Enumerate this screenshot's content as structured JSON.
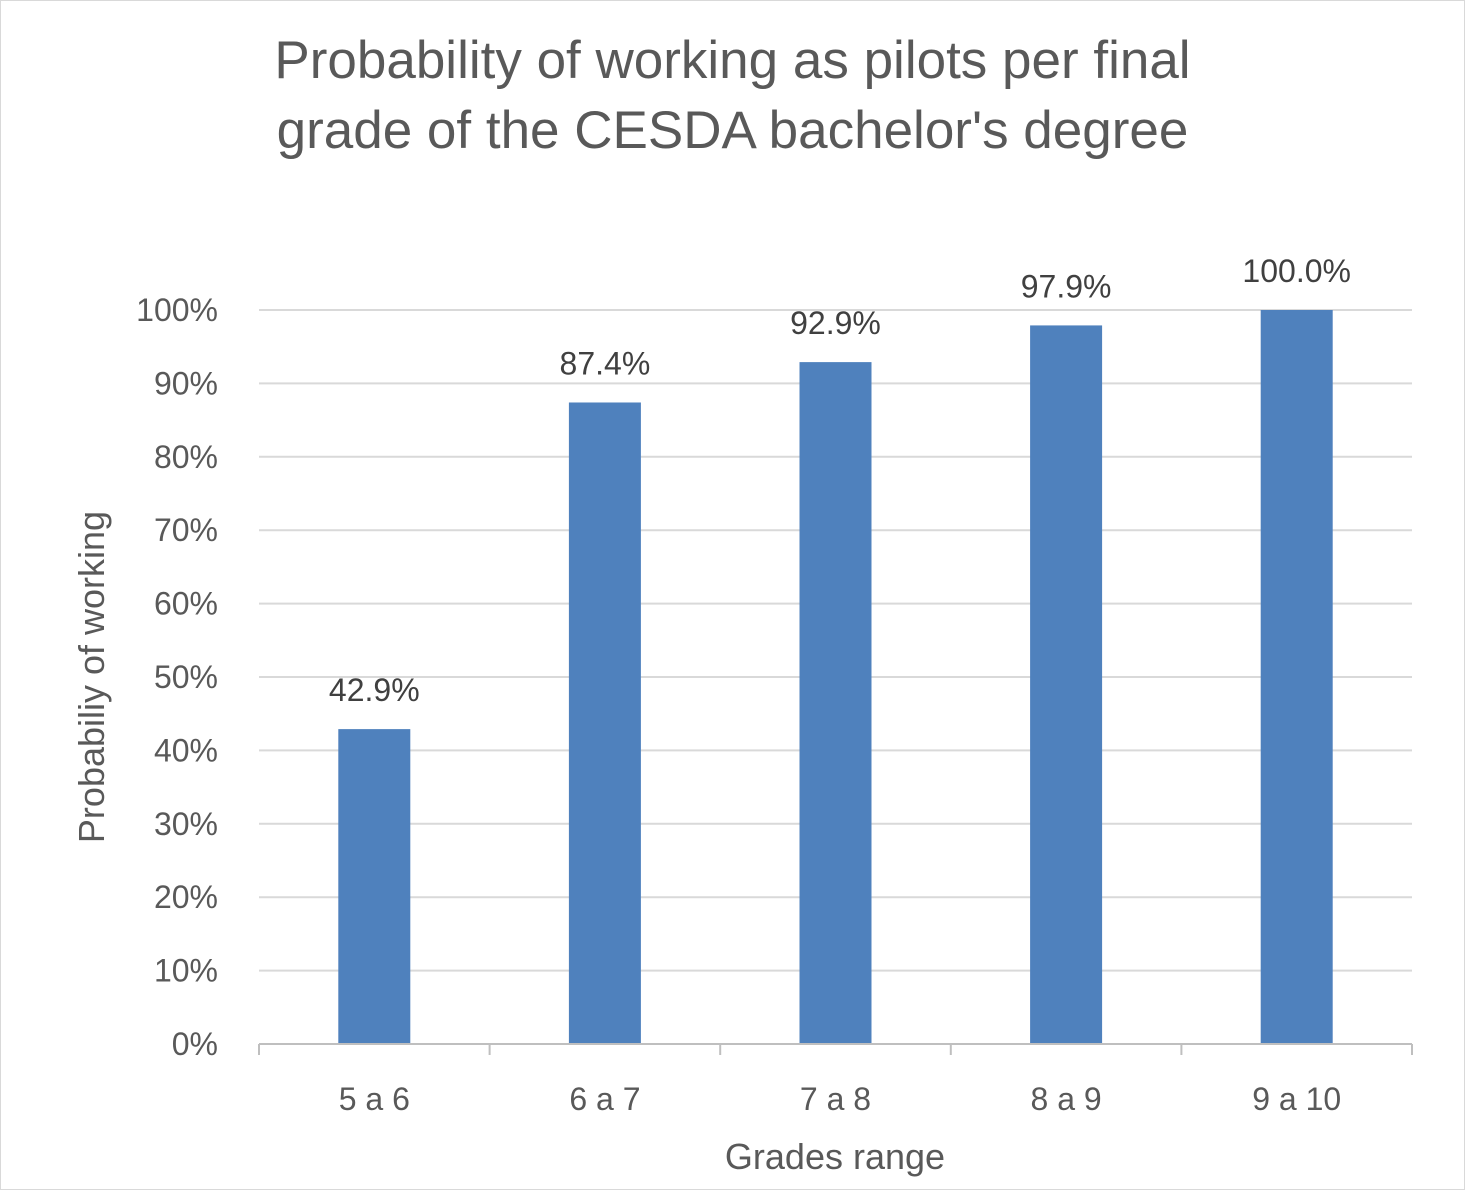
{
  "chart_data": {
    "type": "bar",
    "title": "Probability of working as pilots per final\ngrade of the CESDA bachelor's degree",
    "xlabel": "Grades range",
    "ylabel": "Probabiliy of working",
    "categories": [
      "5 a 6",
      "6 a 7",
      "7 a 8",
      "8 a 9",
      "9 a 10"
    ],
    "values": [
      42.9,
      87.4,
      92.9,
      97.9,
      100.0
    ],
    "data_labels": [
      "42.9%",
      "87.4%",
      "92.9%",
      "97.9%",
      "100.0%"
    ],
    "ylim": [
      0,
      100
    ],
    "yticks": [
      "0%",
      "10%",
      "20%",
      "30%",
      "40%",
      "50%",
      "60%",
      "70%",
      "80%",
      "90%",
      "100%"
    ],
    "grid": true,
    "legend": "none",
    "bar_color": "#4f81bd"
  }
}
